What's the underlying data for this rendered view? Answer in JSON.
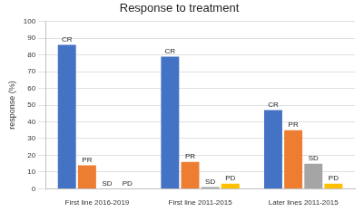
{
  "chart_data": {
    "type": "bar",
    "title": "Response to treatment",
    "y_label": "response (%)",
    "categories": [
      "First line 2016-2019",
      "First line 2011-2015",
      "Later lines 2011-2015"
    ],
    "series": [
      {
        "name": "CR",
        "color": "#4472c4",
        "values": [
          86,
          79,
          47
        ]
      },
      {
        "name": "PR",
        "color": "#ed7d31",
        "values": [
          14,
          16,
          35
        ]
      },
      {
        "name": "SD",
        "color": "#a5a5a5",
        "values": [
          0,
          1,
          15
        ]
      },
      {
        "name": "PD",
        "color": "#ffc000",
        "values": [
          0,
          3,
          3
        ]
      }
    ],
    "ylim": [
      0,
      100
    ],
    "yticks": [
      0,
      10,
      20,
      30,
      40,
      50,
      60,
      70,
      80,
      90,
      100
    ],
    "grid": true
  }
}
